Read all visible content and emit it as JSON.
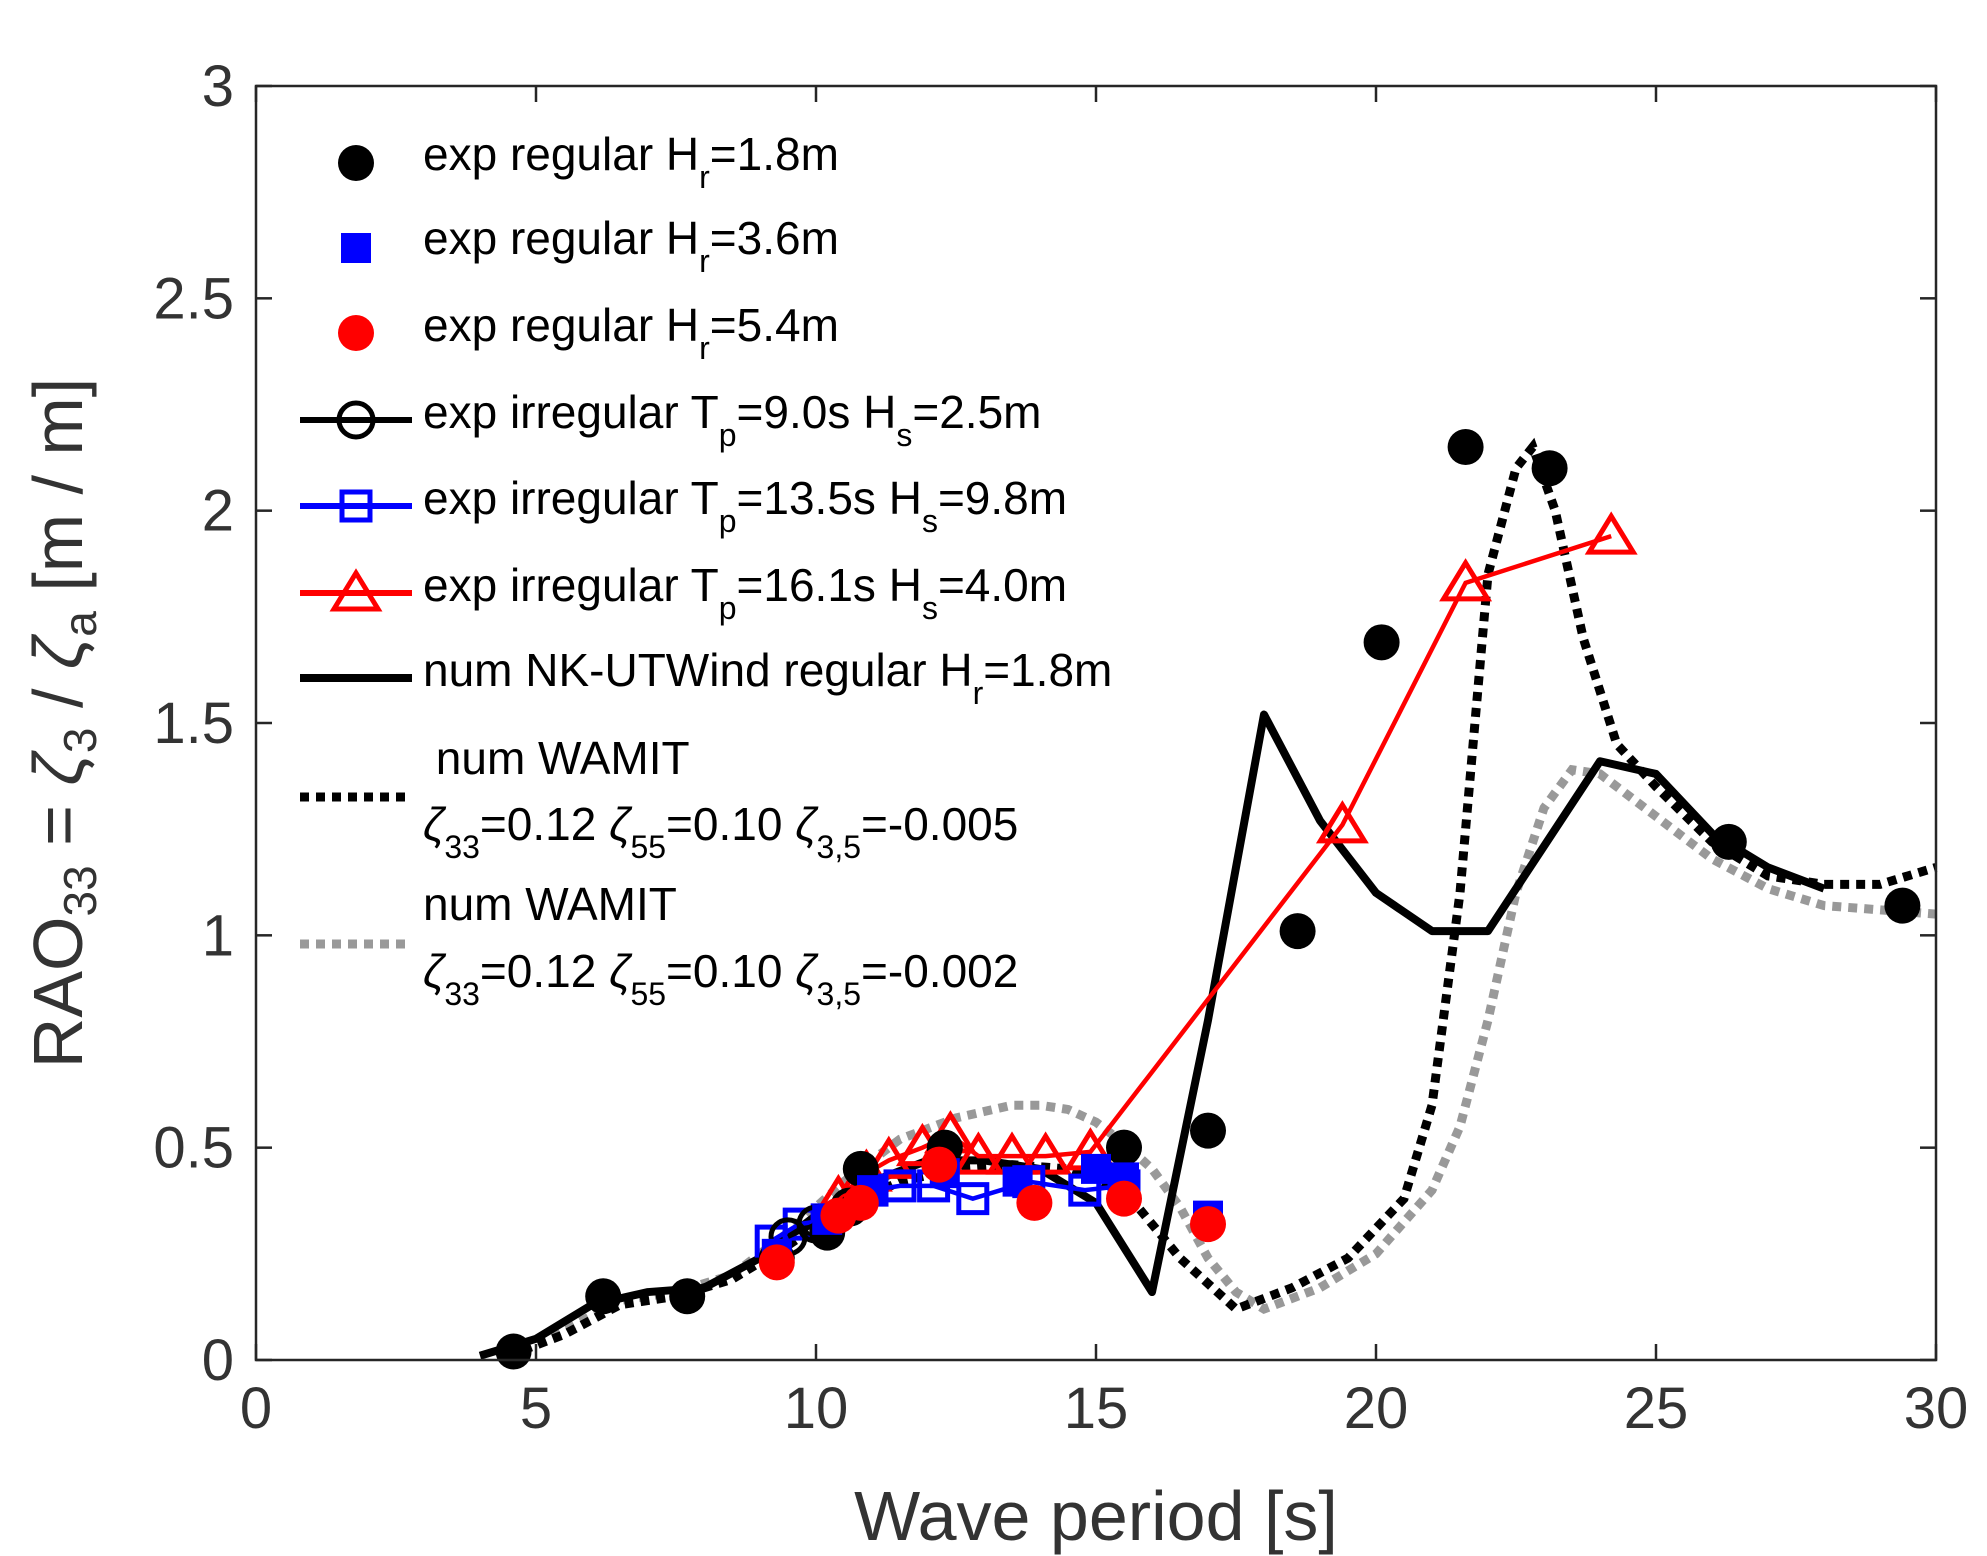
{
  "chart_data": {
    "type": "scatter",
    "xlabel": "Wave period [s]",
    "ylabel_parts": {
      "rao": "RAO",
      "rao_sub": "33",
      "eq": " = ",
      "zeta3": "ζ",
      "zeta3_sub": "3",
      "slash": " / ",
      "zetaa": "ζ",
      "zetaa_sub": "a",
      "unit": "  [m / m]"
    },
    "xlim": [
      0,
      30
    ],
    "ylim": [
      0,
      3
    ],
    "xticks": [
      0,
      5,
      10,
      15,
      20,
      25,
      30
    ],
    "yticks": [
      0,
      0.5,
      1,
      1.5,
      2,
      2.5,
      3
    ],
    "xtick_labels": [
      "0",
      "5",
      "10",
      "15",
      "20",
      "25",
      "30"
    ],
    "ytick_labels": [
      "0",
      "0.5",
      "1",
      "1.5",
      "2",
      "2.5",
      "3"
    ],
    "legend_location": "top-left",
    "series": [
      {
        "name": "exp regular Hr=1.8m",
        "label_parts": {
          "pre": "exp regular H",
          "sub": "r",
          "post": "=1.8m"
        },
        "style": "marker-only",
        "marker": "filled-circle",
        "color": "#000000",
        "x": [
          4.6,
          6.2,
          7.7,
          9.3,
          10.2,
          10.8,
          12.3,
          15.5,
          17.0,
          18.6,
          20.1,
          21.6,
          23.1,
          26.3,
          29.4
        ],
        "y": [
          0.02,
          0.15,
          0.15,
          0.24,
          0.3,
          0.45,
          0.5,
          0.5,
          0.54,
          1.01,
          1.69,
          2.15,
          2.1,
          1.22,
          1.07
        ]
      },
      {
        "name": "exp regular Hr=3.6m",
        "label_parts": {
          "pre": "exp regular H",
          "sub": "r",
          "post": "=3.6m"
        },
        "style": "marker-only",
        "marker": "filled-square",
        "color": "#0000ff",
        "x": [
          9.3,
          10.2,
          11.0,
          12.3,
          13.6,
          15.0,
          15.5,
          17.0
        ],
        "y": [
          0.25,
          0.33,
          0.4,
          0.44,
          0.42,
          0.45,
          0.43,
          0.34
        ]
      },
      {
        "name": "exp regular Hr=5.4m",
        "label_parts": {
          "pre": "exp regular H",
          "sub": "r",
          "post": "=5.4m"
        },
        "style": "marker-only",
        "marker": "filled-circle",
        "color": "#ff0000",
        "x": [
          9.3,
          10.4,
          10.8,
          12.2,
          13.9,
          15.5,
          17.0
        ],
        "y": [
          0.23,
          0.34,
          0.37,
          0.46,
          0.37,
          0.38,
          0.32
        ]
      },
      {
        "name": "exp irregular Tp=9.0s Hs=2.5m",
        "label_parts": {
          "pre": "exp irregular T",
          "sub": "p",
          "mid": "=9.0s H",
          "sub2": "s",
          "post": "=2.5m"
        },
        "style": "line-marker",
        "marker": "open-circle",
        "color": "#000000",
        "x": [
          9.5,
          10.0,
          10.6
        ],
        "y": [
          0.29,
          0.32,
          0.36
        ]
      },
      {
        "name": "exp irregular Tp=13.5s Hs=9.8m",
        "label_parts": {
          "pre": "exp irregular T",
          "sub": "p",
          "mid": "=13.5s H",
          "sub2": "s",
          "post": "=9.8m"
        },
        "style": "line-marker",
        "marker": "open-square",
        "color": "#0000ff",
        "x": [
          9.2,
          9.7,
          10.2,
          11.0,
          11.5,
          12.1,
          12.8,
          13.8,
          14.8,
          15.5
        ],
        "y": [
          0.28,
          0.32,
          0.33,
          0.4,
          0.41,
          0.41,
          0.38,
          0.42,
          0.4,
          0.41
        ]
      },
      {
        "name": "exp irregular Tp=16.1s Hs=4.0m",
        "label_parts": {
          "pre": "exp irregular T",
          "sub": "p",
          "mid": "=16.1s H",
          "sub2": "s",
          "post": "=4.0m"
        },
        "style": "line-marker",
        "marker": "open-triangle",
        "color": "#ff0000",
        "x": [
          10.4,
          10.9,
          11.3,
          11.9,
          12.4,
          12.9,
          13.5,
          14.1,
          14.9,
          19.4,
          21.6,
          24.2
        ],
        "y": [
          0.38,
          0.44,
          0.47,
          0.5,
          0.53,
          0.48,
          0.48,
          0.48,
          0.49,
          1.26,
          1.83,
          1.94
        ]
      },
      {
        "name": "num NK-UTWind regular Hr=1.8m",
        "label_parts": {
          "pre": "num NK-UTWind regular H",
          "sub": "r",
          "post": "=1.8m"
        },
        "style": "line",
        "color": "#000000",
        "x": [
          4.0,
          5.0,
          6.0,
          7.0,
          8.0,
          9.0,
          10.0,
          11.0,
          12.0,
          13.0,
          14.0,
          15.0,
          16.0,
          17.0,
          18.0,
          19.0,
          20.0,
          21.0,
          22.0,
          23.0,
          24.0,
          25.0,
          26.0,
          27.0,
          28.0
        ],
        "y": [
          0.01,
          0.05,
          0.13,
          0.16,
          0.17,
          0.24,
          0.34,
          0.42,
          0.47,
          0.47,
          0.45,
          0.37,
          0.16,
          0.8,
          1.52,
          1.27,
          1.1,
          1.01,
          1.01,
          1.21,
          1.41,
          1.38,
          1.24,
          1.16,
          1.11
        ]
      },
      {
        "name": "num WAMIT ζ33=0.12 ζ55=0.10 ζ3,5=-0.005",
        "label_parts": {
          "title": " num WAMIT",
          "z1": "ζ",
          "z1sub": "33",
          "v1": "=0.12 ",
          "z2": "ζ",
          "z2sub": "55",
          "v2": "=0.10 ",
          "z3": "ζ",
          "z3sub": "3,5",
          "v3": "=-0.005"
        },
        "style": "dotted",
        "color": "#000000",
        "x": [
          4.5,
          5.5,
          6.5,
          7.5,
          8.5,
          9.5,
          10.5,
          11.5,
          12.5,
          13.5,
          14.5,
          15.5,
          16.5,
          17.5,
          18.5,
          19.5,
          20.5,
          21.0,
          21.5,
          22.0,
          22.5,
          22.8,
          23.2,
          23.7,
          24.3,
          25.0,
          26.0,
          27.0,
          28.0,
          29.0,
          30.0
        ],
        "y": [
          0.01,
          0.06,
          0.13,
          0.15,
          0.19,
          0.27,
          0.36,
          0.42,
          0.45,
          0.46,
          0.45,
          0.4,
          0.24,
          0.12,
          0.17,
          0.24,
          0.38,
          0.6,
          1.1,
          1.85,
          2.1,
          2.15,
          2.0,
          1.7,
          1.45,
          1.35,
          1.22,
          1.14,
          1.12,
          1.12,
          1.16
        ]
      },
      {
        "name": "num WAMIT ζ33=0.12 ζ55=0.10 ζ3,5=-0.002",
        "label_parts": {
          "title": "num WAMIT",
          "z1": "ζ",
          "z1sub": "33",
          "v1": "=0.12 ",
          "z2": "ζ",
          "z2sub": "55",
          "v2": "=0.10 ",
          "z3": "ζ",
          "z3sub": "3,5",
          "v3": "=-0.002"
        },
        "style": "dotted",
        "color": "#999999",
        "x": [
          4.5,
          5.5,
          6.5,
          7.5,
          8.5,
          9.5,
          10.5,
          11.5,
          12.5,
          13.5,
          14.0,
          14.5,
          15.0,
          15.5,
          16.0,
          16.5,
          17.0,
          17.5,
          18.0,
          19.0,
          20.0,
          21.0,
          21.5,
          22.0,
          22.5,
          23.0,
          23.5,
          24.0,
          25.0,
          26.0,
          27.0,
          28.0,
          29.0,
          30.0
        ],
        "y": [
          0.01,
          0.07,
          0.14,
          0.16,
          0.2,
          0.3,
          0.42,
          0.52,
          0.57,
          0.6,
          0.6,
          0.59,
          0.56,
          0.51,
          0.45,
          0.36,
          0.24,
          0.16,
          0.12,
          0.17,
          0.25,
          0.4,
          0.55,
          0.8,
          1.1,
          1.3,
          1.39,
          1.38,
          1.28,
          1.18,
          1.11,
          1.07,
          1.06,
          1.05
        ]
      }
    ]
  }
}
